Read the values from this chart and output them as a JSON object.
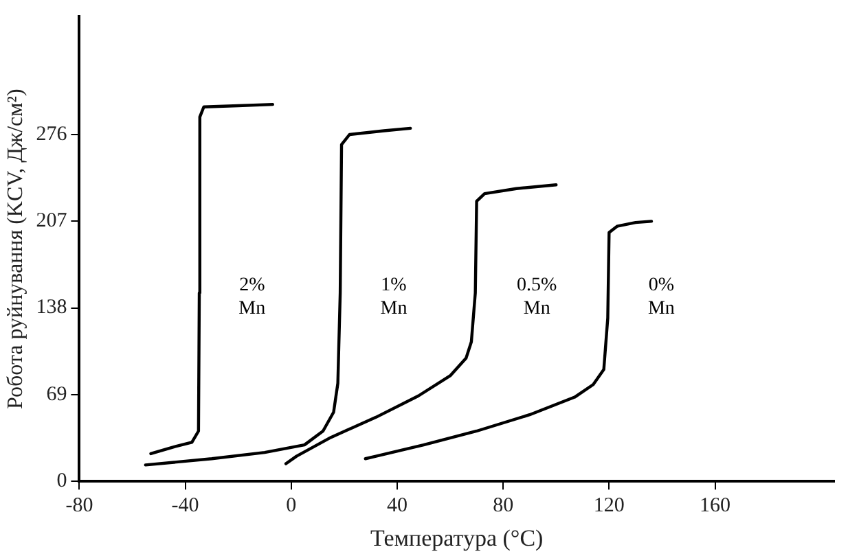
{
  "chart_data": {
    "type": "line",
    "xlabel": "Температура (°C)",
    "ylabel": "Робота руйнування (KCV, Дж/см²)",
    "xlim": [
      -80,
      205
    ],
    "xticks": [
      -80,
      -40,
      0,
      40,
      80,
      120,
      160
    ],
    "ylim": [
      0,
      370
    ],
    "yticks": [
      0,
      69,
      138,
      207,
      276
    ],
    "grid": false,
    "legend": false,
    "marker": "none",
    "line_style": "solid",
    "series": [
      {
        "name": "2% Mn",
        "color": "#000000",
        "x": [
          -53,
          -45,
          -37.5,
          -35,
          -34.7,
          -34.5,
          -33,
          -20,
          -7
        ],
        "values": [
          22,
          27,
          31,
          40,
          150,
          290,
          298,
          299,
          300
        ]
      },
      {
        "name": "1% Mn",
        "color": "#000000",
        "x": [
          -55,
          -30,
          -10,
          5,
          12,
          16,
          17.6,
          18.5,
          19,
          22,
          35,
          45
        ],
        "values": [
          13,
          18,
          23,
          29,
          40,
          55,
          78,
          150,
          268,
          276,
          279,
          281
        ]
      },
      {
        "name": "0.5% Mn",
        "color": "#000000",
        "x": [
          -2,
          2,
          15,
          32,
          48,
          60,
          66,
          68,
          69.5,
          70,
          73,
          85,
          100
        ],
        "values": [
          14,
          20,
          35,
          51,
          68,
          84,
          98,
          111,
          150,
          223,
          229,
          233,
          236
        ]
      },
      {
        "name": "0% Mn",
        "color": "#000000",
        "x": [
          28,
          32,
          50,
          70,
          90,
          107,
          114,
          118,
          119.5,
          120,
          123,
          130,
          136
        ],
        "values": [
          18,
          20,
          29,
          40,
          53,
          67,
          77,
          89,
          130,
          198,
          203,
          206,
          207
        ]
      }
    ]
  }
}
